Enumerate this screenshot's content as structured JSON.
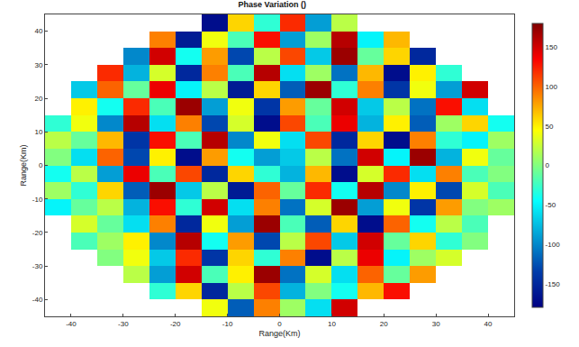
{
  "chart_data": {
    "type": "heatmap",
    "title": "Phase Variation ()",
    "x_label": "Range(Km)",
    "y_label": "Range(Km)",
    "color": "Jet",
    "x": [
      -42.5,
      -37.5,
      -32.5,
      -27.5,
      -22.5,
      -17.5,
      -12.5,
      -7.5,
      -2.5,
      2.5,
      7.5,
      12.5,
      17.5,
      22.5,
      27.5,
      32.5,
      37.5,
      42.5
    ],
    "y": [
      -42.5,
      -37.5,
      -32.5,
      -27.5,
      -22.5,
      -17.5,
      -12.5,
      -7.5,
      -2.5,
      2.5,
      7.5,
      12.5,
      17.5,
      22.5,
      27.5,
      32.5,
      37.5,
      42.5
    ],
    "cells": [
      [
        null,
        null,
        null,
        null,
        null,
        null,
        40,
        -120,
        90,
        10,
        -60,
        150,
        null,
        null,
        null,
        null,
        null,
        null
      ],
      [
        null,
        null,
        null,
        null,
        -30,
        60,
        -150,
        20,
        110,
        -80,
        0,
        -40,
        70,
        130,
        null,
        null,
        null,
        null
      ],
      [
        null,
        null,
        null,
        20,
        -90,
        150,
        -20,
        50,
        170,
        -110,
        30,
        -60,
        100,
        -10,
        80,
        null,
        null,
        null
      ],
      [
        null,
        null,
        0,
        40,
        -70,
        120,
        -140,
        60,
        -30,
        90,
        -170,
        20,
        140,
        -50,
        10,
        30,
        null,
        null
      ],
      [
        null,
        -20,
        10,
        50,
        -100,
        160,
        -40,
        80,
        -130,
        20,
        110,
        -70,
        150,
        -10,
        60,
        -30,
        0,
        null
      ],
      [
        null,
        30,
        -10,
        -60,
        90,
        -150,
        40,
        -90,
        170,
        -20,
        -120,
        60,
        -170,
        100,
        -40,
        20,
        -20,
        null
      ],
      [
        -50,
        -10,
        20,
        -80,
        130,
        -30,
        150,
        -60,
        90,
        -110,
        30,
        170,
        -90,
        40,
        -140,
        80,
        0,
        10
      ],
      [
        10,
        -30,
        60,
        -120,
        170,
        -70,
        20,
        -160,
        100,
        -10,
        120,
        -40,
        160,
        -100,
        50,
        -130,
        30,
        -20
      ],
      [
        -40,
        20,
        -90,
        140,
        -20,
        110,
        -150,
        60,
        -30,
        -80,
        70,
        -170,
        30,
        120,
        -60,
        90,
        -20,
        0
      ],
      [
        0,
        -60,
        100,
        -130,
        50,
        -170,
        80,
        -40,
        -90,
        -70,
        20,
        -110,
        150,
        -50,
        170,
        -80,
        40,
        -10
      ],
      [
        20,
        -10,
        70,
        -140,
        130,
        -20,
        160,
        -100,
        40,
        -60,
        110,
        -150,
        60,
        -170,
        90,
        -30,
        -50,
        10
      ],
      [
        -30,
        40,
        -100,
        160,
        -60,
        90,
        -130,
        30,
        -170,
        110,
        -20,
        140,
        -80,
        50,
        -120,
        10,
        60,
        -40
      ],
      [
        null,
        50,
        -40,
        120,
        -20,
        170,
        -90,
        40,
        -140,
        80,
        -10,
        150,
        -70,
        20,
        -110,
        130,
        -60,
        null
      ],
      [
        null,
        -70,
        100,
        -10,
        140,
        -50,
        20,
        -160,
        60,
        -120,
        170,
        -30,
        90,
        -140,
        40,
        -90,
        150,
        null
      ],
      [
        null,
        null,
        120,
        -80,
        30,
        -150,
        90,
        -20,
        160,
        -60,
        10,
        -110,
        70,
        -170,
        50,
        -30,
        null,
        null
      ],
      [
        null,
        null,
        null,
        -100,
        150,
        -40,
        80,
        -130,
        20,
        110,
        -70,
        170,
        -10,
        60,
        -150,
        null,
        null,
        null
      ],
      [
        null,
        null,
        null,
        null,
        90,
        -160,
        40,
        -20,
        130,
        -90,
        10,
        160,
        -50,
        70,
        null,
        null,
        null,
        null
      ],
      [
        null,
        null,
        null,
        null,
        null,
        null,
        -170,
        60,
        -30,
        120,
        -90,
        20,
        null,
        null,
        null,
        null,
        null,
        null
      ]
    ],
    "xlim": [
      -45,
      45
    ],
    "ylim": [
      -45,
      45
    ],
    "xticks": [
      -40,
      -30,
      -20,
      -10,
      0,
      10,
      20,
      30,
      40
    ],
    "yticks": [
      -40,
      -30,
      -20,
      -10,
      0,
      10,
      20,
      30,
      40
    ],
    "color_range": [
      -180,
      180
    ],
    "color_ticks": [
      -150,
      -100,
      -50,
      0,
      50,
      100,
      150
    ]
  }
}
